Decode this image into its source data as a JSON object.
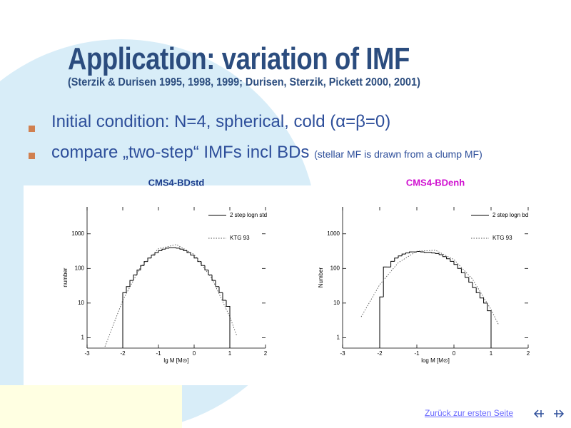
{
  "slide": {
    "title": "Application: variation of IMF",
    "subtitle": "(Sterzik & Durisen 1995, 1998, 1999; Durisen, Sterzik, Pickett 2000, 2001)",
    "bullets": [
      {
        "text": "Initial condition: N=4, spherical, cold (α=β=0)"
      },
      {
        "text": "compare „two-step“ IMFs incl BDs",
        "note": "(stellar MF is drawn from a clump MF)"
      }
    ],
    "footer_link": "Zurück zur ersten Seite"
  },
  "chart_data": [
    {
      "type": "histogram",
      "title": "CMS4-BDstd",
      "title_color": "#1a3c8c",
      "xlabel": "lg M [M⊙]",
      "ylabel": "number",
      "log_y": true,
      "legend": "top-right",
      "xlim": [
        -3,
        2
      ],
      "ylim": [
        0.5,
        6000
      ],
      "xticks": [
        -3,
        -2,
        -1,
        0,
        1,
        2
      ],
      "yticks": [
        1,
        10,
        100,
        1000
      ],
      "bins": [
        -2.0,
        -1.9,
        -1.8,
        -1.7,
        -1.6,
        -1.5,
        -1.4,
        -1.3,
        -1.2,
        -1.1,
        -1.0,
        -0.9,
        -0.8,
        -0.7,
        -0.6,
        -0.5,
        -0.4,
        -0.3,
        -0.2,
        -0.1,
        0.0,
        0.1,
        0.2,
        0.3,
        0.4,
        0.5,
        0.6,
        0.7,
        0.8,
        0.9,
        1.0
      ],
      "series": [
        {
          "name": "2 step logn std",
          "type": "histogram",
          "color": "#000000",
          "values": [
            20,
            30,
            45,
            65,
            90,
            121,
            158,
            199,
            243,
            286,
            327,
            361,
            385,
            398,
            398,
            385,
            361,
            327,
            286,
            243,
            199,
            158,
            121,
            90,
            65,
            45,
            30,
            20,
            12,
            8
          ]
        },
        {
          "name": "KTG 93",
          "type": "line",
          "color": "#555555",
          "x": [
            -2.5,
            -2,
            -1.5,
            -1,
            -0.5,
            0,
            0.5,
            1,
            1.2
          ],
          "values": [
            0.55,
            12,
            109,
            371,
            490,
            254,
            51,
            4,
            1.1
          ]
        }
      ]
    },
    {
      "type": "histogram",
      "title": "CMS4-BDenh",
      "title_color": "#d010d0",
      "xlabel": "log M [M⊙]",
      "ylabel": "Number",
      "log_y": true,
      "legend": "top-right",
      "xlim": [
        -3,
        2
      ],
      "ylim": [
        0.5,
        6000
      ],
      "xticks": [
        -3,
        -2,
        -1,
        0,
        1,
        2
      ],
      "yticks": [
        1,
        10,
        100,
        1000
      ],
      "bins": [
        -2.0,
        -1.9,
        -1.8,
        -1.7,
        -1.6,
        -1.5,
        -1.4,
        -1.3,
        -1.2,
        -1.1,
        -1.0,
        -0.9,
        -0.8,
        -0.7,
        -0.6,
        -0.5,
        -0.4,
        -0.3,
        -0.2,
        -0.1,
        0.0,
        0.1,
        0.2,
        0.3,
        0.4,
        0.5,
        0.6,
        0.7,
        0.8,
        0.9,
        1.0
      ],
      "series": [
        {
          "name": "2 step logn bd",
          "type": "histogram",
          "color": "#000000",
          "values": [
            15,
            110,
            110,
            160,
            200,
            230,
            260,
            280,
            300,
            300,
            310,
            300,
            290,
            290,
            280,
            270,
            250,
            220,
            190,
            160,
            130,
            100,
            75,
            55,
            40,
            28,
            20,
            14,
            10,
            6
          ]
        },
        {
          "name": "KTG 93",
          "type": "line",
          "color": "#555555",
          "x": [
            -2.5,
            -2,
            -1.5,
            -1,
            -0.5,
            0,
            0.5,
            1,
            1.2
          ],
          "values": [
            4,
            34,
            147,
            313,
            336,
            180,
            49,
            6.5,
            2.4
          ]
        }
      ]
    }
  ]
}
